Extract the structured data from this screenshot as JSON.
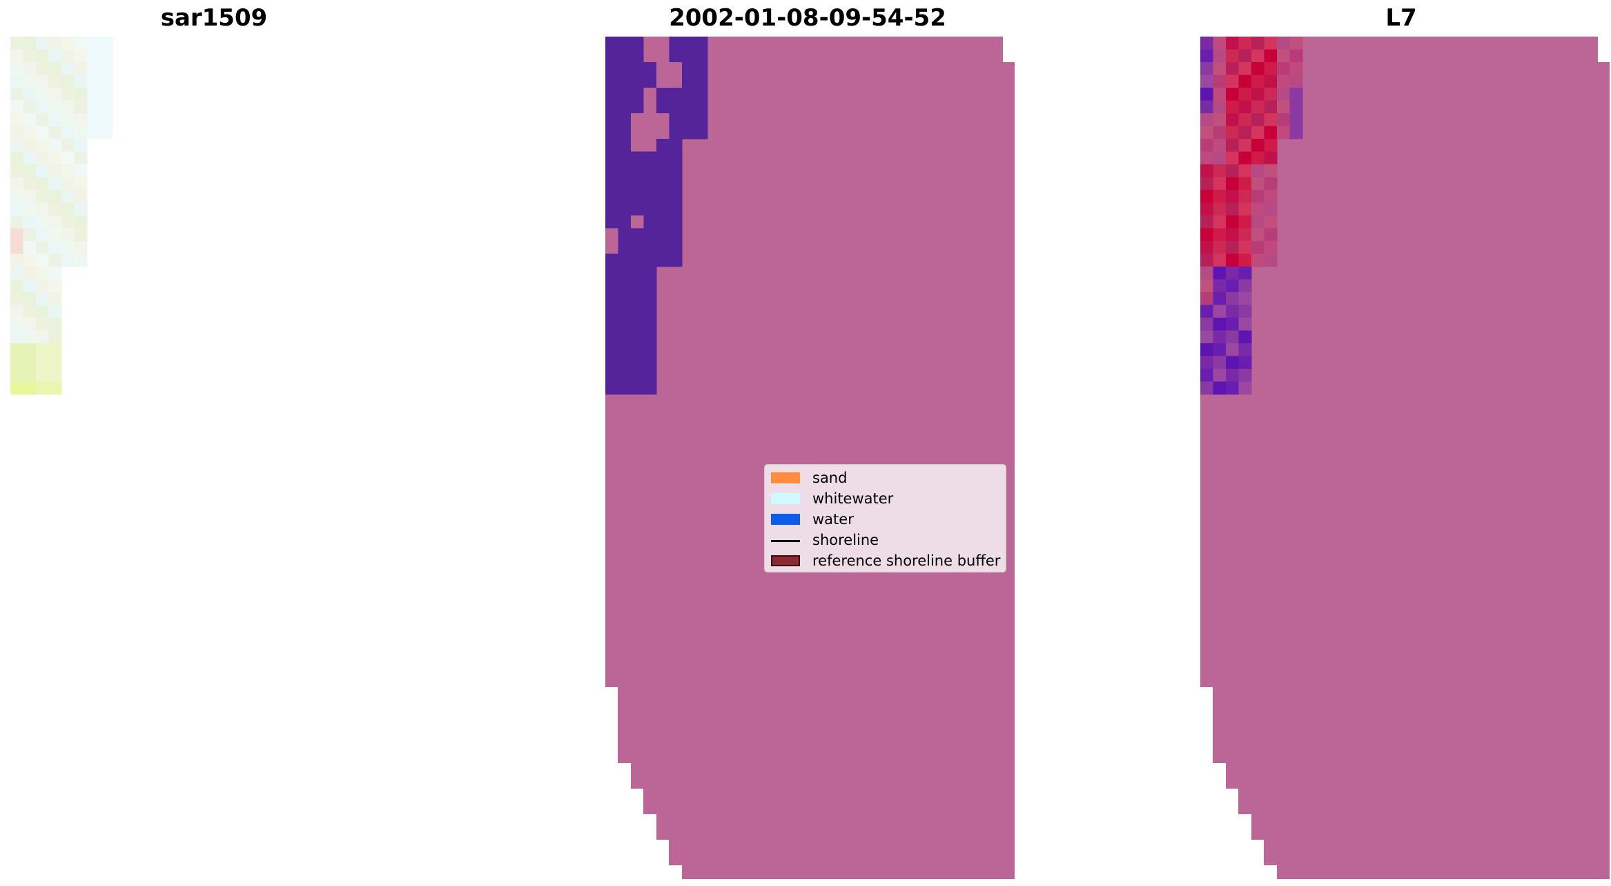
{
  "panels": [
    {
      "title": "sar1509"
    },
    {
      "title": "2002-01-08-09-54-52"
    },
    {
      "title": "L7"
    }
  ],
  "legend": {
    "items": [
      {
        "label": "sand",
        "kind": "patch",
        "color": "#ff8c3f"
      },
      {
        "label": "whitewater",
        "kind": "patch",
        "color": "#cff8ff"
      },
      {
        "label": "water",
        "kind": "patch",
        "color": "#0f5ce8"
      },
      {
        "label": "shoreline",
        "kind": "line",
        "color": "#000000"
      },
      {
        "label": "reference shoreline buffer",
        "kind": "patch",
        "color": "#8b2a33",
        "edge": "#3a0a10"
      }
    ]
  },
  "colors": {
    "background_overlay": "#bc6697",
    "water_classified": "#55249a",
    "nir_hot": "#c90033",
    "nir_purple": "#5d14b0"
  }
}
